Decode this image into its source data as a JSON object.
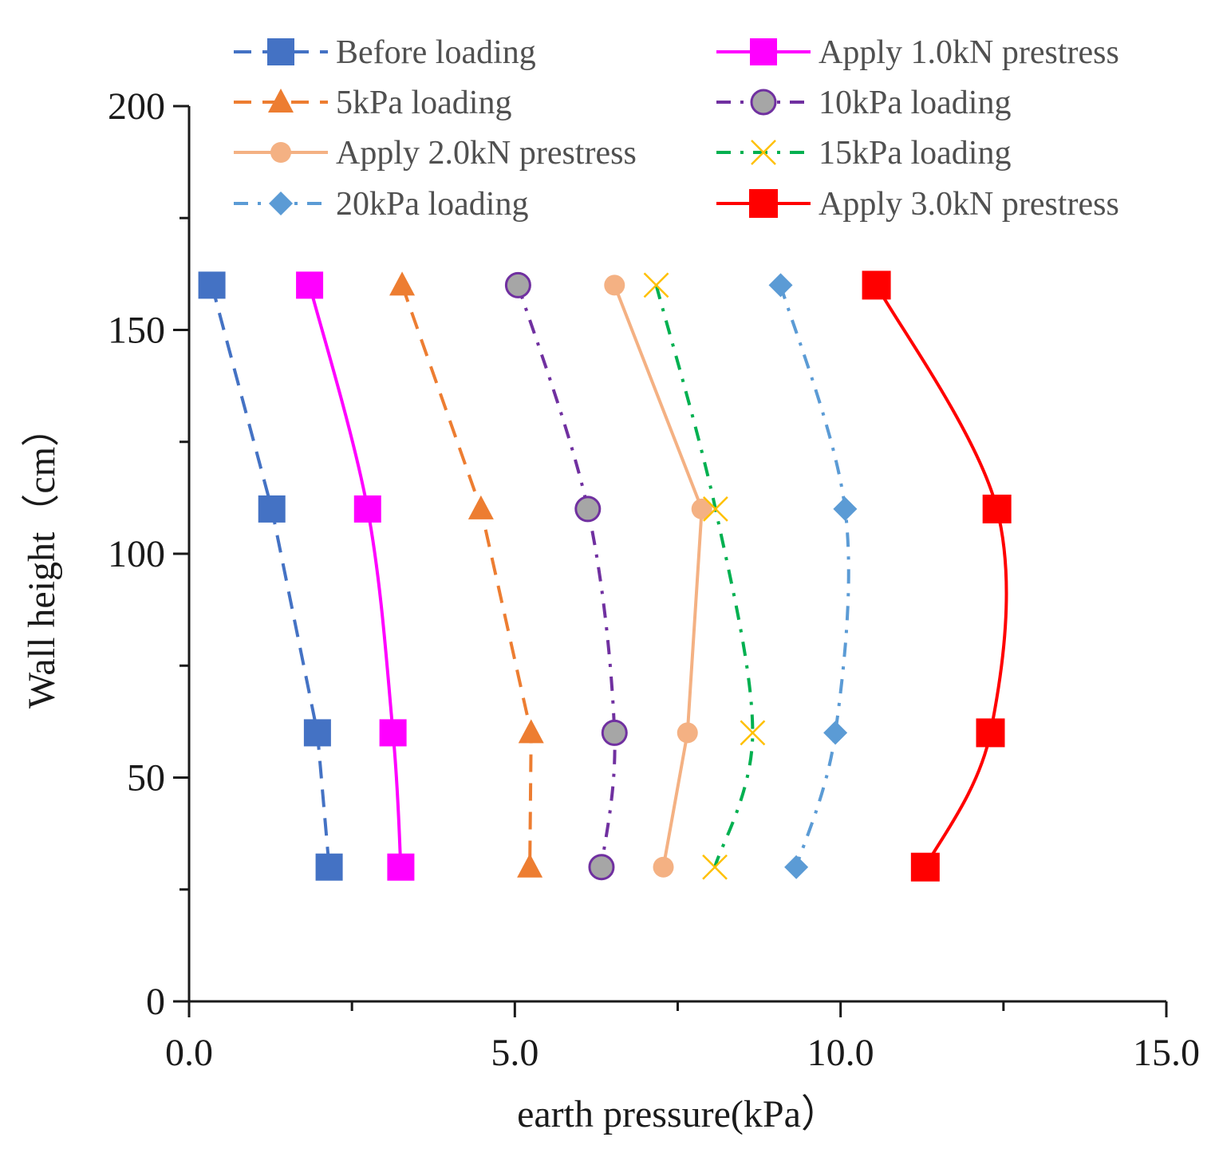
{
  "chart_data": {
    "type": "line",
    "title": "",
    "xlabel": "earth pressure(kPa）",
    "ylabel": "Wall height（cm）",
    "xlim": [
      0,
      15
    ],
    "ylim": [
      0,
      200
    ],
    "x_ticks": [
      "0.0",
      "5.0",
      "10.0",
      "15.0"
    ],
    "y_ticks": [
      "0",
      "50",
      "100",
      "150",
      "200"
    ],
    "grid": false,
    "legend": "top",
    "heights": [
      160,
      110,
      60,
      30
    ],
    "series": [
      {
        "name": "Before loading",
        "color": "#4472C4",
        "dash": "dash",
        "marker": "square",
        "smooth": false,
        "values": [
          0.35,
          1.27,
          1.97,
          2.15
        ]
      },
      {
        "name": "5kPa loading",
        "color": "#ED7D31",
        "dash": "dash",
        "marker": "triangle",
        "smooth": false,
        "values": [
          3.27,
          4.48,
          5.25,
          5.23
        ]
      },
      {
        "name": "Apply 2.0kN prestress",
        "color": "#F4B183",
        "dash": "solid",
        "marker": "circle",
        "smooth": false,
        "values": [
          6.53,
          7.87,
          7.65,
          7.28
        ]
      },
      {
        "name": "20kPa loading",
        "color": "#5B9BD5",
        "dash": "dashdot",
        "marker": "diamond",
        "smooth": true,
        "values": [
          9.08,
          10.07,
          9.92,
          9.32
        ]
      },
      {
        "name": "Apply 1.0kN prestress",
        "color": "#FF00FF",
        "dash": "solid",
        "marker": "square",
        "smooth": true,
        "values": [
          1.85,
          2.74,
          3.13,
          3.25
        ]
      },
      {
        "name": "10kPa loading",
        "color": "#7030A0",
        "dash": "dashdot",
        "marker": "circle-grey",
        "smooth": true,
        "values": [
          5.05,
          6.12,
          6.53,
          6.33
        ]
      },
      {
        "name": "15kPa loading",
        "color": "#00B050",
        "dash": "dashdot",
        "marker": "x",
        "markerColor": "#FFC000",
        "smooth": true,
        "values": [
          7.17,
          8.08,
          8.65,
          8.07
        ]
      },
      {
        "name": "Apply 3.0kN prestress",
        "color": "#FF0000",
        "dash": "solid",
        "marker": "square",
        "smooth": true,
        "values": [
          10.55,
          12.4,
          12.3,
          11.3
        ]
      }
    ]
  }
}
